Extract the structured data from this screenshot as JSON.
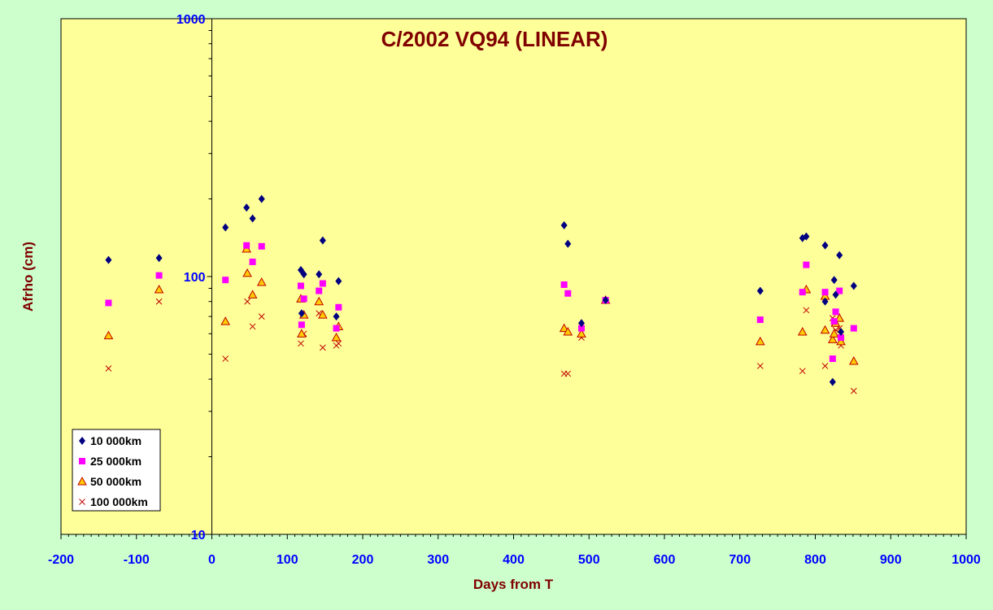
{
  "chart_data": {
    "type": "scatter",
    "title": "C/2002 VQ94 (LINEAR)",
    "xlabel": "Days from T",
    "ylabel": "Afrho (cm)",
    "xlim": [
      -200,
      1000
    ],
    "ylim": [
      10,
      1000
    ],
    "yscale": "log",
    "x_ticks": [
      -200,
      -100,
      0,
      100,
      200,
      300,
      400,
      500,
      600,
      700,
      800,
      900,
      1000
    ],
    "y_ticks": [
      10,
      100,
      1000
    ],
    "legend_position": "bottom-left",
    "grid": false,
    "plot_background": "#ffff99",
    "page_background": "#ccffcc",
    "series": [
      {
        "name": "10 000km",
        "marker": "diamond",
        "color": "#000080",
        "points": [
          [
            -137,
            116
          ],
          [
            -70,
            118
          ],
          [
            18,
            155
          ],
          [
            46,
            185
          ],
          [
            54,
            168
          ],
          [
            66,
            200
          ],
          [
            118,
            106
          ],
          [
            119,
            72
          ],
          [
            122,
            102
          ],
          [
            142,
            102
          ],
          [
            147,
            138
          ],
          [
            165,
            70
          ],
          [
            168,
            96
          ],
          [
            467,
            158
          ],
          [
            472,
            134
          ],
          [
            490,
            66
          ],
          [
            522,
            81
          ],
          [
            727,
            88
          ],
          [
            783,
            141
          ],
          [
            788,
            143
          ],
          [
            813,
            132
          ],
          [
            813,
            80
          ],
          [
            823,
            39
          ],
          [
            825,
            97
          ],
          [
            827,
            85
          ],
          [
            832,
            121
          ],
          [
            834,
            61
          ],
          [
            851,
            92
          ]
        ]
      },
      {
        "name": "25 000km",
        "marker": "square",
        "color": "#ff00ff",
        "points": [
          [
            -137,
            79
          ],
          [
            -70,
            101
          ],
          [
            18,
            97
          ],
          [
            46,
            132
          ],
          [
            54,
            114
          ],
          [
            66,
            131
          ],
          [
            118,
            92
          ],
          [
            119,
            65
          ],
          [
            122,
            82
          ],
          [
            142,
            88
          ],
          [
            147,
            94
          ],
          [
            165,
            63
          ],
          [
            168,
            76
          ],
          [
            467,
            93
          ],
          [
            472,
            86
          ],
          [
            490,
            63
          ],
          [
            522,
            81
          ],
          [
            727,
            68
          ],
          [
            783,
            87
          ],
          [
            788,
            111
          ],
          [
            813,
            87
          ],
          [
            823,
            48
          ],
          [
            825,
            67
          ],
          [
            827,
            73
          ],
          [
            832,
            88
          ],
          [
            834,
            58
          ],
          [
            851,
            63
          ]
        ]
      },
      {
        "name": "50 000km",
        "marker": "triangle",
        "color": "#ffcc00",
        "stroke": "#c00000",
        "points": [
          [
            -137,
            59
          ],
          [
            -70,
            89
          ],
          [
            18,
            67
          ],
          [
            46,
            128
          ],
          [
            47,
            103
          ],
          [
            54,
            85
          ],
          [
            66,
            95
          ],
          [
            118,
            82
          ],
          [
            119,
            60
          ],
          [
            122,
            71
          ],
          [
            142,
            80
          ],
          [
            147,
            71
          ],
          [
            165,
            58
          ],
          [
            168,
            64
          ],
          [
            467,
            63
          ],
          [
            472,
            61
          ],
          [
            490,
            60
          ],
          [
            522,
            81
          ],
          [
            727,
            56
          ],
          [
            783,
            61
          ],
          [
            788,
            89
          ],
          [
            813,
            62
          ],
          [
            813,
            84
          ],
          [
            823,
            57
          ],
          [
            825,
            60
          ],
          [
            827,
            66
          ],
          [
            832,
            69
          ],
          [
            834,
            56
          ],
          [
            851,
            47
          ]
        ]
      },
      {
        "name": "100 000km",
        "marker": "x",
        "color": "#c00000",
        "points": [
          [
            -137,
            44
          ],
          [
            -70,
            80
          ],
          [
            18,
            48
          ],
          [
            46,
            128
          ],
          [
            47,
            80
          ],
          [
            54,
            64
          ],
          [
            66,
            70
          ],
          [
            118,
            55
          ],
          [
            122,
            60
          ],
          [
            142,
            72
          ],
          [
            147,
            53
          ],
          [
            165,
            54
          ],
          [
            168,
            55
          ],
          [
            467,
            42
          ],
          [
            472,
            42
          ],
          [
            490,
            58
          ],
          [
            522,
            81
          ],
          [
            727,
            45
          ],
          [
            783,
            43
          ],
          [
            788,
            74
          ],
          [
            813,
            45
          ],
          [
            823,
            69
          ],
          [
            825,
            66
          ],
          [
            827,
            62
          ],
          [
            832,
            63
          ],
          [
            834,
            54
          ],
          [
            851,
            36
          ]
        ]
      }
    ]
  }
}
